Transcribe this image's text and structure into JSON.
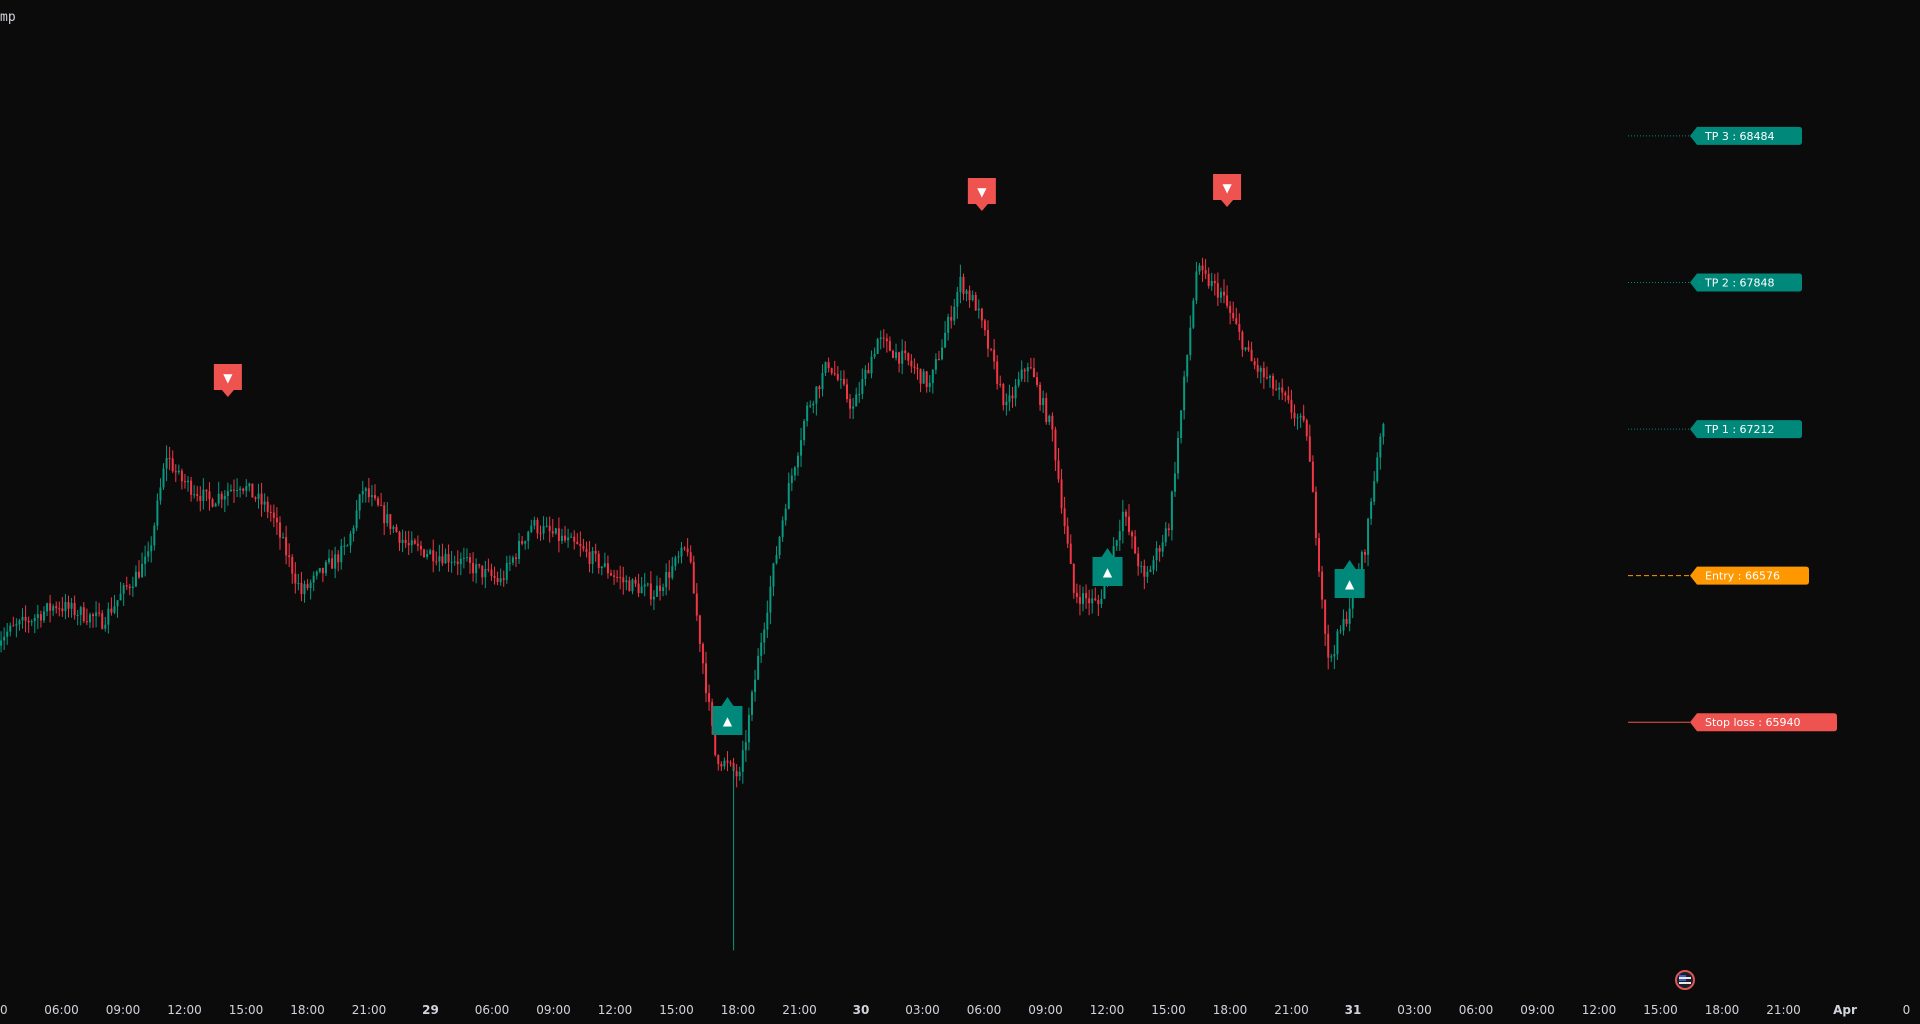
{
  "window": {
    "title_fragment": "mp"
  },
  "colors": {
    "background": "#0b0b0b",
    "up": "#089981",
    "down": "#f23645",
    "tp_label": "#00897b",
    "entry": "#ff9800",
    "stop": "#ef5350",
    "text": "#d1d4dc"
  },
  "chart_data": {
    "type": "candlestick",
    "x_ticks": [
      "0",
      "06:00",
      "09:00",
      "12:00",
      "15:00",
      "18:00",
      "21:00",
      "29",
      "06:00",
      "09:00",
      "12:00",
      "15:00",
      "18:00",
      "21:00",
      "30",
      "03:00",
      "06:00",
      "09:00",
      "12:00",
      "15:00",
      "18:00",
      "21:00",
      "31",
      "03:00",
      "06:00",
      "09:00",
      "12:00",
      "15:00",
      "18:00",
      "21:00",
      "Apr",
      "0"
    ],
    "price_anchors": [
      {
        "t": 0,
        "p": 66300
      },
      {
        "t": 20,
        "p": 66450
      },
      {
        "t": 35,
        "p": 66380
      },
      {
        "t": 50,
        "p": 66650
      },
      {
        "t": 56,
        "p": 67100
      },
      {
        "t": 60,
        "p": 67000
      },
      {
        "t": 70,
        "p": 66900
      },
      {
        "t": 80,
        "p": 66980
      },
      {
        "t": 90,
        "p": 66850
      },
      {
        "t": 100,
        "p": 66500
      },
      {
        "t": 115,
        "p": 66700
      },
      {
        "t": 120,
        "p": 66950
      },
      {
        "t": 135,
        "p": 66700
      },
      {
        "t": 150,
        "p": 66650
      },
      {
        "t": 165,
        "p": 66550
      },
      {
        "t": 175,
        "p": 66800
      },
      {
        "t": 190,
        "p": 66700
      },
      {
        "t": 205,
        "p": 66550
      },
      {
        "t": 215,
        "p": 66500
      },
      {
        "t": 226,
        "p": 66700
      },
      {
        "t": 235,
        "p": 65800
      },
      {
        "t": 243,
        "p": 65700
      },
      {
        "t": 250,
        "p": 66300
      },
      {
        "t": 258,
        "p": 66900
      },
      {
        "t": 265,
        "p": 67300
      },
      {
        "t": 272,
        "p": 67500
      },
      {
        "t": 280,
        "p": 67300
      },
      {
        "t": 288,
        "p": 67600
      },
      {
        "t": 298,
        "p": 67500
      },
      {
        "t": 305,
        "p": 67400
      },
      {
        "t": 315,
        "p": 67850
      },
      {
        "t": 320,
        "p": 67750
      },
      {
        "t": 330,
        "p": 67300
      },
      {
        "t": 337,
        "p": 67500
      },
      {
        "t": 345,
        "p": 67200
      },
      {
        "t": 352,
        "p": 66500
      },
      {
        "t": 360,
        "p": 66450
      },
      {
        "t": 368,
        "p": 66850
      },
      {
        "t": 375,
        "p": 66550
      },
      {
        "t": 383,
        "p": 66800
      },
      {
        "t": 392,
        "p": 67900
      },
      {
        "t": 400,
        "p": 67800
      },
      {
        "t": 410,
        "p": 67500
      },
      {
        "t": 420,
        "p": 67350
      },
      {
        "t": 428,
        "p": 67200
      },
      {
        "t": 435,
        "p": 66200
      },
      {
        "t": 441,
        "p": 66400
      },
      {
        "t": 447,
        "p": 66700
      },
      {
        "t": 452,
        "p": 67200
      }
    ],
    "y_range": [
      64800,
      68900
    ],
    "signals": [
      {
        "type": "sell",
        "t": 75,
        "label": "▼"
      },
      {
        "type": "buy",
        "t": 238,
        "label": "▲"
      },
      {
        "type": "sell",
        "t": 321,
        "label": "▼"
      },
      {
        "type": "buy",
        "t": 362,
        "label": "▲"
      },
      {
        "type": "sell",
        "t": 401,
        "label": "▼"
      },
      {
        "type": "buy",
        "t": 441,
        "label": "▲"
      }
    ],
    "levels": [
      {
        "name": "TP 3",
        "value": 68484,
        "label": "TP 3 : 68484",
        "style": "dotted",
        "color": "#00897b"
      },
      {
        "name": "TP 2",
        "value": 67848,
        "label": "TP 2 : 67848",
        "style": "dotted",
        "color": "#00897b"
      },
      {
        "name": "TP 1",
        "value": 67212,
        "label": "TP 1 : 67212",
        "style": "dotted",
        "color": "#00897b"
      },
      {
        "name": "Entry",
        "value": 66576,
        "label": "Entry : 66576",
        "style": "dashed",
        "color": "#ff9800"
      },
      {
        "name": "Stop loss",
        "value": 65940,
        "label": "Stop loss : 65940",
        "style": "solid",
        "color": "#ef5350"
      }
    ]
  }
}
